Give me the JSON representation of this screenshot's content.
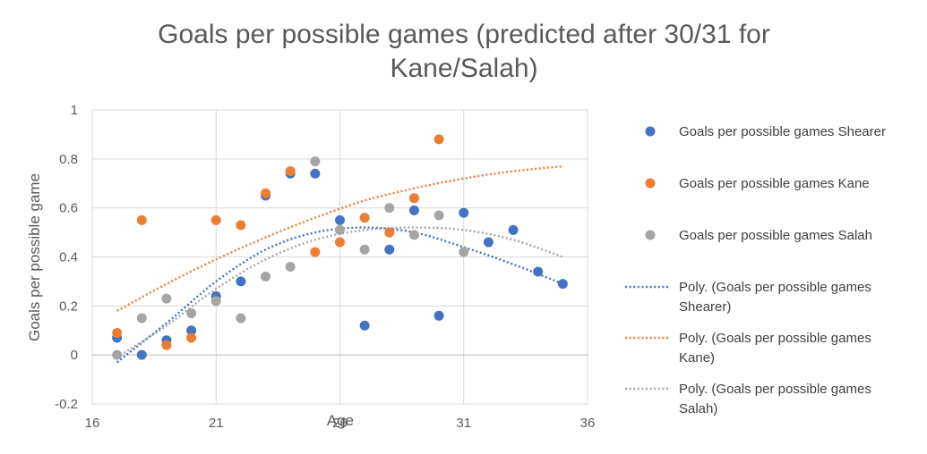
{
  "chart_data": {
    "type": "scatter",
    "title_lines": [
      "Goals per possible games (predicted after 30/31 for",
      "Kane/Salah)"
    ],
    "xlabel": "Age",
    "ylabel": "Goals per possible game",
    "xlim": [
      16,
      36
    ],
    "ylim": [
      -0.2,
      1
    ],
    "xticks": [
      16,
      21,
      26,
      31,
      36
    ],
    "yticks": [
      -0.2,
      0,
      0.2,
      0.4,
      0.6,
      0.8,
      1
    ],
    "grid": true,
    "legend_position": "right",
    "series": [
      {
        "name": "Goals per possible games Shearer",
        "color": "#4472C4",
        "x": [
          17,
          18,
          19,
          20,
          21,
          22,
          23,
          24,
          25,
          26,
          27,
          28,
          29,
          30,
          31,
          32,
          33,
          34,
          35
        ],
        "y": [
          0.07,
          0.0,
          0.06,
          0.1,
          0.24,
          0.3,
          0.65,
          0.74,
          0.74,
          0.55,
          0.12,
          0.43,
          0.59,
          0.16,
          0.58,
          0.46,
          0.51,
          0.34,
          0.29
        ]
      },
      {
        "name": "Goals per possible games Kane",
        "color": "#ED7D31",
        "x": [
          17,
          18,
          19,
          20,
          21,
          22,
          23,
          24,
          25,
          26,
          27,
          28,
          29,
          30
        ],
        "y": [
          0.09,
          0.55,
          0.04,
          0.07,
          0.55,
          0.53,
          0.66,
          0.75,
          0.42,
          0.46,
          0.56,
          0.5,
          0.64,
          0.88
        ]
      },
      {
        "name": "Goals per possible games Salah",
        "color": "#A5A5A5",
        "x": [
          17,
          18,
          19,
          20,
          21,
          22,
          23,
          24,
          25,
          26,
          27,
          28,
          29,
          30,
          31
        ],
        "y": [
          0.0,
          0.15,
          0.23,
          0.17,
          0.22,
          0.15,
          0.32,
          0.36,
          0.79,
          0.51,
          0.43,
          0.6,
          0.49,
          0.57,
          0.42
        ]
      }
    ],
    "trendlines": [
      {
        "name_lines": [
          "Poly. (Goals per possible games",
          "Shearer)"
        ],
        "color": "#4472C4",
        "x": [
          17,
          19,
          21,
          23,
          25,
          27,
          29,
          31,
          33,
          35
        ],
        "y": [
          -0.03,
          0.13,
          0.3,
          0.43,
          0.5,
          0.52,
          0.5,
          0.44,
          0.37,
          0.29
        ]
      },
      {
        "name_lines": [
          "Poly. (Goals per possible games",
          "Kane)"
        ],
        "color": "#ED7D31",
        "x": [
          17,
          19,
          21,
          23,
          25,
          27,
          29,
          31,
          33,
          35
        ],
        "y": [
          0.18,
          0.29,
          0.39,
          0.48,
          0.56,
          0.63,
          0.68,
          0.72,
          0.75,
          0.77
        ]
      },
      {
        "name_lines": [
          "Poly. (Goals per possible games",
          "Salah)"
        ],
        "color": "#A5A5A5",
        "x": [
          17,
          19,
          21,
          23,
          25,
          27,
          29,
          31,
          33,
          35
        ],
        "y": [
          -0.01,
          0.12,
          0.27,
          0.39,
          0.47,
          0.51,
          0.52,
          0.51,
          0.47,
          0.4
        ]
      }
    ]
  }
}
